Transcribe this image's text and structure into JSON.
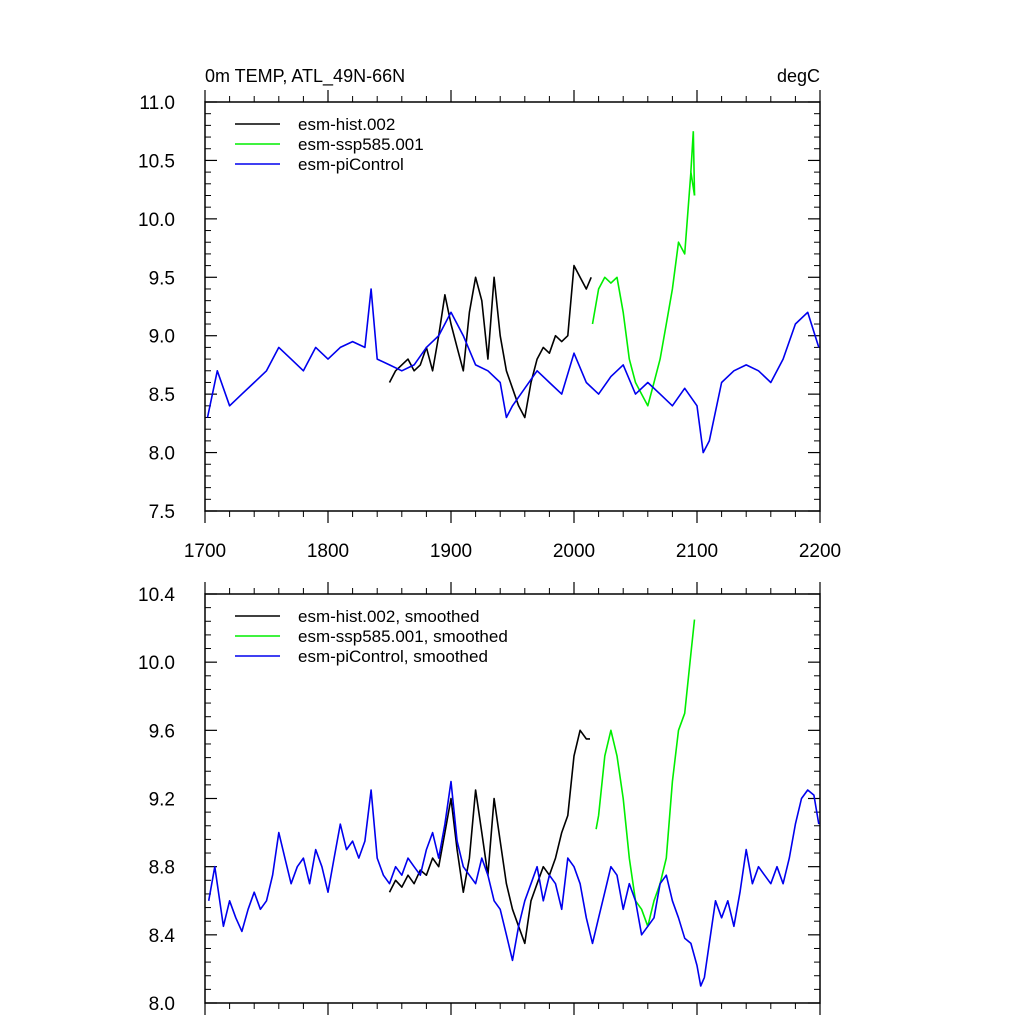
{
  "chart_data": [
    {
      "type": "line",
      "title_left": "0m TEMP, ATL_49N-66N",
      "title_right": "degC",
      "xlabel": "",
      "ylabel": "",
      "xlim": [
        1700,
        2200
      ],
      "ylim": [
        7.5,
        11.0
      ],
      "x_ticks": [
        1700,
        1800,
        1900,
        2000,
        2100,
        2200
      ],
      "x_tick_labels": [
        "1700",
        "1800",
        "1900",
        "2000",
        "2100",
        "2200"
      ],
      "y_ticks": [
        7.5,
        8.0,
        8.5,
        9.0,
        9.5,
        10.0,
        10.5,
        11.0
      ],
      "y_tick_labels": [
        "7.5",
        "8.0",
        "8.5",
        "9.0",
        "9.5",
        "10.0",
        "10.5",
        "11.0"
      ],
      "legend_position": "top-left",
      "series": [
        {
          "name": "esm-hist.002",
          "color": "#000000",
          "x": [
            1850,
            1855,
            1860,
            1865,
            1870,
            1875,
            1880,
            1885,
            1890,
            1895,
            1900,
            1905,
            1910,
            1915,
            1920,
            1925,
            1930,
            1935,
            1940,
            1945,
            1950,
            1955,
            1960,
            1965,
            1970,
            1975,
            1980,
            1985,
            1990,
            1995,
            2000,
            2005,
            2010,
            2014
          ],
          "y": [
            8.6,
            8.7,
            8.75,
            8.8,
            8.7,
            8.75,
            8.9,
            8.7,
            9.0,
            9.35,
            9.1,
            8.9,
            8.7,
            9.2,
            9.5,
            9.3,
            8.8,
            9.5,
            9.0,
            8.7,
            8.55,
            8.4,
            8.3,
            8.6,
            8.8,
            8.9,
            8.85,
            9.0,
            8.95,
            9.0,
            9.6,
            9.5,
            9.4,
            9.5
          ]
        },
        {
          "name": "esm-ssp585.001",
          "color": "#00ee00",
          "x": [
            2015,
            2020,
            2025,
            2030,
            2035,
            2040,
            2045,
            2050,
            2055,
            2060,
            2065,
            2070,
            2075,
            2080,
            2085,
            2090,
            2095,
            2098
          ],
          "y": [
            9.1,
            9.4,
            9.5,
            9.45,
            9.5,
            9.2,
            8.8,
            8.6,
            8.5,
            8.4,
            8.6,
            8.8,
            9.1,
            9.4,
            9.8,
            9.7,
            10.4,
            10.2
          ],
          "peak": {
            "x": 2097,
            "y": 10.75
          }
        },
        {
          "name": "esm-piControl",
          "color": "#0000ee",
          "x": [
            1702,
            1710,
            1720,
            1730,
            1740,
            1750,
            1760,
            1770,
            1780,
            1790,
            1800,
            1810,
            1820,
            1830,
            1835,
            1840,
            1850,
            1860,
            1870,
            1880,
            1890,
            1900,
            1910,
            1920,
            1930,
            1940,
            1945,
            1950,
            1960,
            1970,
            1980,
            1990,
            2000,
            2010,
            2020,
            2030,
            2040,
            2050,
            2060,
            2070,
            2080,
            2090,
            2100,
            2105,
            2110,
            2120,
            2130,
            2140,
            2150,
            2160,
            2170,
            2180,
            2190,
            2199
          ],
          "y": [
            8.3,
            8.7,
            8.4,
            8.5,
            8.6,
            8.7,
            8.9,
            8.8,
            8.7,
            8.9,
            8.8,
            8.9,
            8.95,
            8.9,
            9.4,
            8.8,
            8.75,
            8.7,
            8.75,
            8.9,
            9.0,
            9.2,
            9.0,
            8.75,
            8.7,
            8.6,
            8.3,
            8.4,
            8.55,
            8.7,
            8.6,
            8.5,
            8.85,
            8.6,
            8.5,
            8.65,
            8.75,
            8.5,
            8.6,
            8.5,
            8.4,
            8.55,
            8.4,
            8.0,
            8.1,
            8.6,
            8.7,
            8.75,
            8.7,
            8.6,
            8.8,
            9.1,
            9.2,
            8.9
          ]
        }
      ]
    },
    {
      "type": "line",
      "title_left": "",
      "title_right": "",
      "xlabel": "",
      "ylabel": "",
      "xlim": [
        1700,
        2200
      ],
      "ylim": [
        8.0,
        10.4
      ],
      "x_ticks": [
        1700,
        1800,
        1900,
        2000,
        2100,
        2200
      ],
      "x_tick_labels": [],
      "y_ticks": [
        8.0,
        8.4,
        8.8,
        9.2,
        9.6,
        10.0,
        10.4
      ],
      "y_tick_labels": [
        "8.0",
        "8.4",
        "8.8",
        "9.2",
        "9.6",
        "10.0",
        "10.4"
      ],
      "legend_position": "top-left",
      "series": [
        {
          "name": "esm-hist.002, smoothed",
          "color": "#000000",
          "x": [
            1850,
            1855,
            1860,
            1865,
            1870,
            1875,
            1880,
            1885,
            1890,
            1895,
            1900,
            1905,
            1910,
            1915,
            1920,
            1925,
            1930,
            1935,
            1940,
            1945,
            1950,
            1955,
            1960,
            1965,
            1970,
            1975,
            1980,
            1985,
            1990,
            1995,
            2000,
            2005,
            2010,
            2013
          ],
          "y": [
            8.65,
            8.72,
            8.68,
            8.75,
            8.7,
            8.78,
            8.75,
            8.85,
            8.8,
            9.0,
            9.2,
            8.9,
            8.65,
            8.85,
            9.25,
            9.0,
            8.75,
            9.2,
            8.95,
            8.7,
            8.55,
            8.45,
            8.35,
            8.6,
            8.7,
            8.8,
            8.75,
            8.85,
            9.0,
            9.1,
            9.45,
            9.6,
            9.55,
            9.55
          ]
        },
        {
          "name": "esm-ssp585.001, smoothed",
          "color": "#00ee00",
          "x": [
            2018,
            2020,
            2025,
            2030,
            2035,
            2040,
            2045,
            2050,
            2055,
            2060,
            2065,
            2070,
            2075,
            2080,
            2085,
            2090,
            2095,
            2098
          ],
          "y": [
            9.02,
            9.1,
            9.45,
            9.6,
            9.45,
            9.2,
            8.85,
            8.6,
            8.55,
            8.45,
            8.6,
            8.7,
            8.85,
            9.3,
            9.6,
            9.7,
            10.05,
            10.25
          ]
        },
        {
          "name": "esm-piControl, smoothed",
          "color": "#0000ee",
          "x": [
            1703,
            1708,
            1715,
            1720,
            1725,
            1730,
            1735,
            1740,
            1745,
            1750,
            1755,
            1760,
            1765,
            1770,
            1775,
            1780,
            1785,
            1790,
            1795,
            1800,
            1805,
            1810,
            1815,
            1820,
            1825,
            1830,
            1835,
            1840,
            1845,
            1850,
            1855,
            1860,
            1865,
            1870,
            1875,
            1880,
            1885,
            1890,
            1895,
            1900,
            1905,
            1910,
            1915,
            1920,
            1925,
            1930,
            1935,
            1940,
            1945,
            1950,
            1955,
            1960,
            1965,
            1970,
            1975,
            1980,
            1985,
            1990,
            1995,
            2000,
            2005,
            2010,
            2015,
            2020,
            2025,
            2030,
            2035,
            2040,
            2045,
            2050,
            2055,
            2060,
            2065,
            2070,
            2075,
            2080,
            2085,
            2090,
            2095,
            2100,
            2103,
            2106,
            2110,
            2115,
            2120,
            2125,
            2130,
            2135,
            2140,
            2145,
            2150,
            2155,
            2160,
            2165,
            2170,
            2175,
            2180,
            2185,
            2190,
            2195,
            2199
          ],
          "y": [
            8.6,
            8.8,
            8.45,
            8.6,
            8.5,
            8.42,
            8.55,
            8.65,
            8.55,
            8.6,
            8.75,
            9.0,
            8.85,
            8.7,
            8.8,
            8.85,
            8.7,
            8.9,
            8.8,
            8.65,
            8.85,
            9.05,
            8.9,
            8.95,
            8.85,
            8.95,
            9.25,
            8.85,
            8.75,
            8.7,
            8.8,
            8.75,
            8.85,
            8.8,
            8.75,
            8.9,
            9.0,
            8.85,
            9.05,
            9.3,
            8.95,
            8.8,
            8.75,
            8.7,
            8.85,
            8.75,
            8.6,
            8.55,
            8.4,
            8.25,
            8.45,
            8.6,
            8.7,
            8.8,
            8.6,
            8.75,
            8.7,
            8.55,
            8.85,
            8.8,
            8.7,
            8.5,
            8.35,
            8.5,
            8.65,
            8.8,
            8.75,
            8.55,
            8.7,
            8.6,
            8.4,
            8.45,
            8.5,
            8.7,
            8.75,
            8.6,
            8.5,
            8.38,
            8.35,
            8.22,
            8.1,
            8.15,
            8.35,
            8.6,
            8.5,
            8.6,
            8.45,
            8.65,
            8.9,
            8.7,
            8.8,
            8.75,
            8.7,
            8.8,
            8.7,
            8.85,
            9.05,
            9.2,
            9.25,
            9.22,
            9.05
          ]
        }
      ]
    }
  ]
}
